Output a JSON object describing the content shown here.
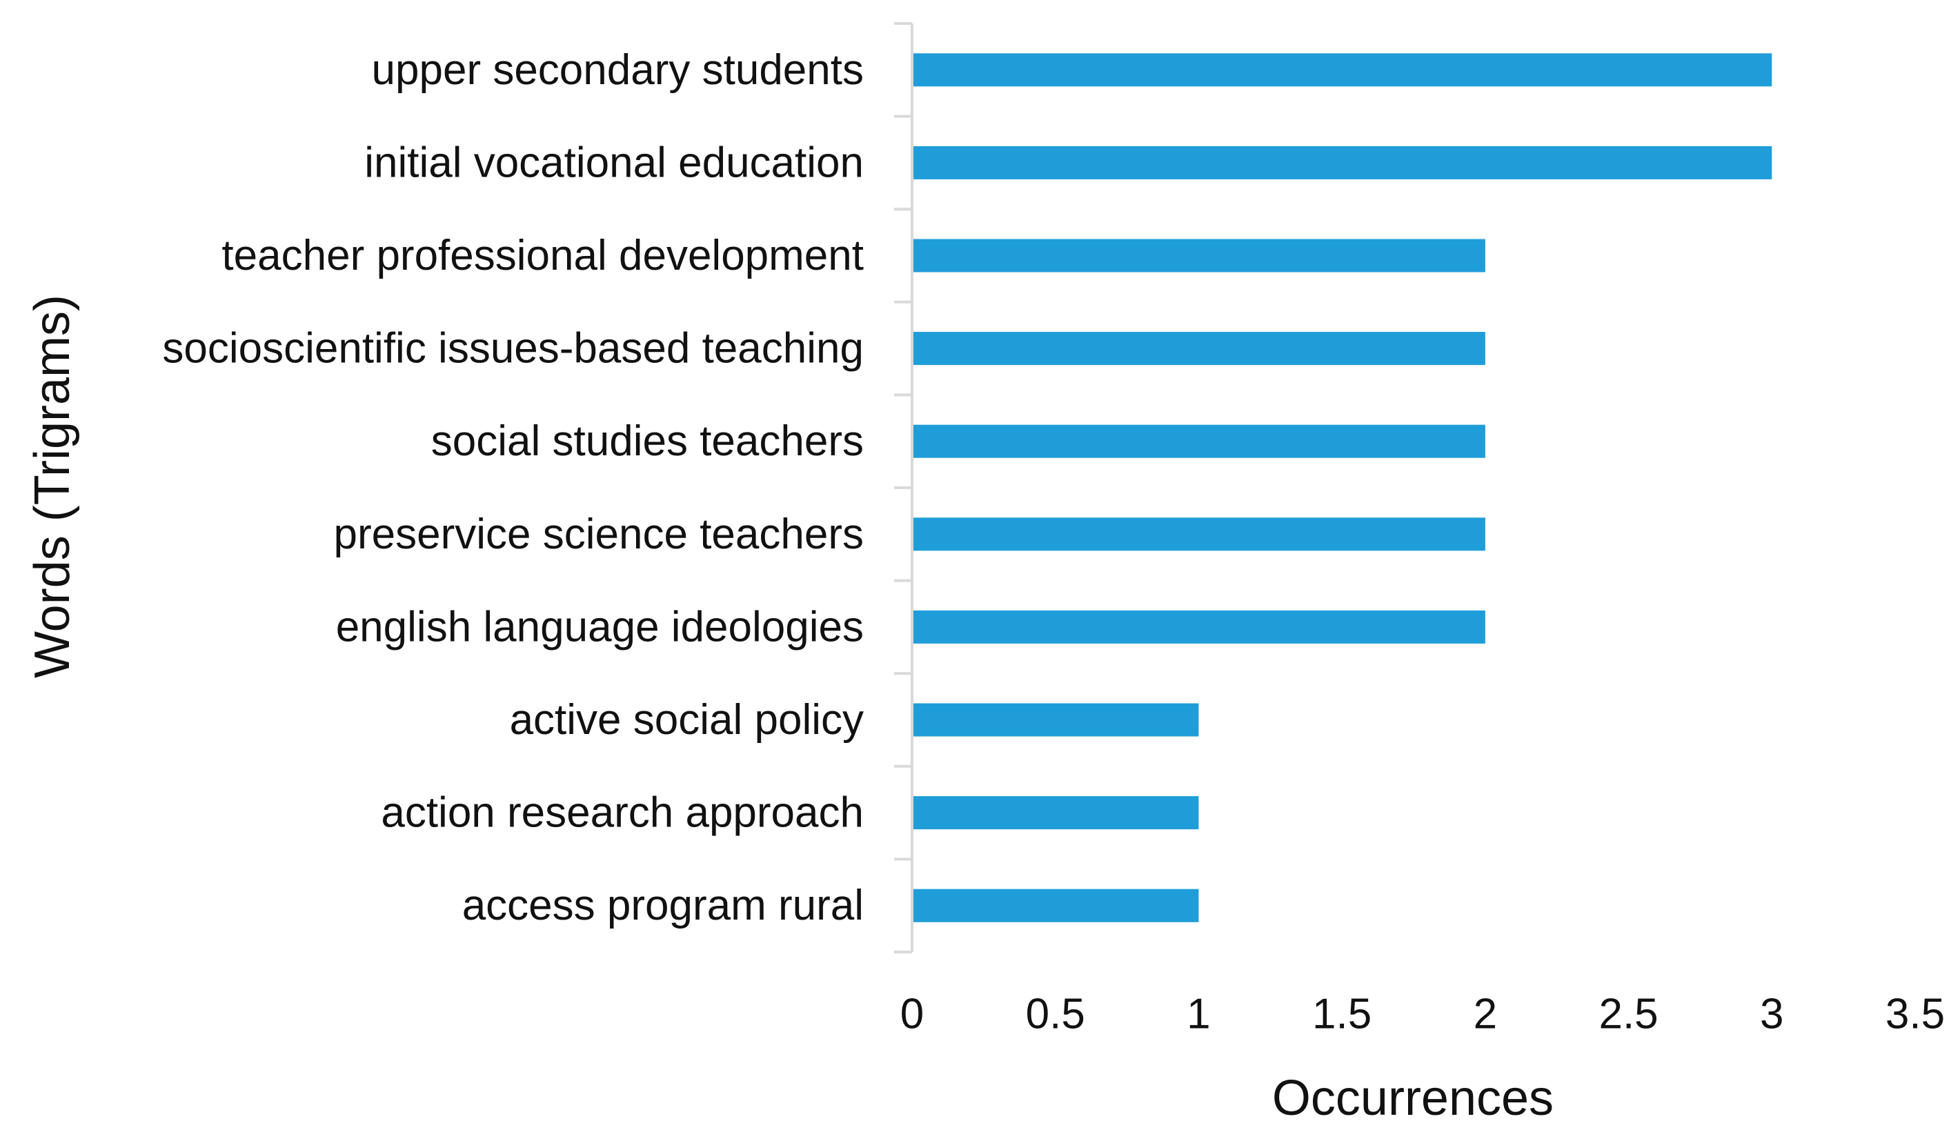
{
  "chart_data": {
    "type": "bar",
    "orientation": "horizontal",
    "categories": [
      "upper secondary students",
      "initial vocational education",
      "teacher professional development",
      "socioscientific issues-based teaching",
      "social studies teachers",
      "preservice science teachers",
      "english language ideologies",
      "active social policy",
      "action research approach",
      "access program rural"
    ],
    "values": [
      3,
      3,
      2,
      2,
      2,
      2,
      2,
      1,
      1,
      1
    ],
    "xlabel": "Occurrences",
    "ylabel": "Words (Trigrams)",
    "xlim": [
      0,
      3.5
    ],
    "xticks": [
      0,
      0.5,
      1,
      1.5,
      2,
      2.5,
      3,
      3.5
    ],
    "xtick_labels": [
      "0",
      "0.5",
      "1",
      "1.5",
      "2",
      "2.5",
      "3",
      "3.5"
    ],
    "grid": false,
    "legend": "none",
    "bar_color": "#1f9dd9",
    "axis_color": "#d9d9d9"
  }
}
